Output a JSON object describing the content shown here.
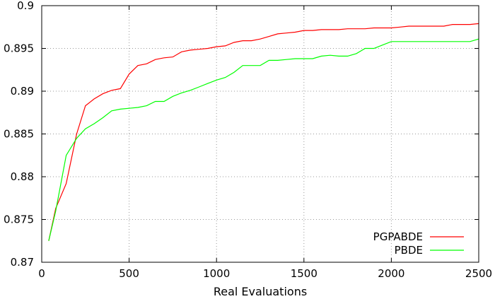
{
  "chart_data": {
    "type": "line",
    "title": "",
    "xlabel": "Real Evaluations",
    "ylabel": "",
    "xlim": [
      0,
      2500
    ],
    "ylim": [
      0.87,
      0.9
    ],
    "xticks": [
      0,
      500,
      1000,
      1500,
      2000,
      2500
    ],
    "yticks": [
      0.87,
      0.875,
      0.88,
      0.885,
      0.89,
      0.895,
      0.9
    ],
    "xtick_labels": [
      "0",
      "500",
      "1000",
      "1500",
      "2000",
      "2500"
    ],
    "ytick_labels": [
      "0.87",
      "0.875",
      "0.88",
      "0.885",
      "0.89",
      "0.895",
      "0.9"
    ],
    "grid": true,
    "legend_position": "bottom-right",
    "series": [
      {
        "name": "PGPABDE",
        "color": "#ff0000",
        "x": [
          40,
          80,
          140,
          200,
          250,
          300,
          350,
          400,
          450,
          500,
          550,
          600,
          650,
          700,
          750,
          800,
          850,
          900,
          950,
          1000,
          1050,
          1100,
          1150,
          1200,
          1250,
          1300,
          1350,
          1400,
          1450,
          1500,
          1550,
          1600,
          1650,
          1700,
          1750,
          1800,
          1850,
          1900,
          1950,
          2000,
          2050,
          2100,
          2150,
          2200,
          2250,
          2300,
          2350,
          2400,
          2450,
          2500
        ],
        "y": [
          0.8725,
          0.8763,
          0.8792,
          0.885,
          0.8883,
          0.8891,
          0.8897,
          0.8901,
          0.8903,
          0.892,
          0.893,
          0.8932,
          0.8937,
          0.8939,
          0.894,
          0.8946,
          0.8948,
          0.8949,
          0.895,
          0.8952,
          0.8953,
          0.8957,
          0.8959,
          0.8959,
          0.8961,
          0.8964,
          0.8967,
          0.8968,
          0.8969,
          0.8971,
          0.8971,
          0.8972,
          0.8972,
          0.8972,
          0.8973,
          0.8973,
          0.8973,
          0.8974,
          0.8974,
          0.8974,
          0.8975,
          0.8976,
          0.8976,
          0.8976,
          0.8976,
          0.8976,
          0.8978,
          0.8978,
          0.8978,
          0.8979
        ]
      },
      {
        "name": "PBDE",
        "color": "#00ff00",
        "x": [
          40,
          80,
          140,
          200,
          250,
          300,
          350,
          400,
          450,
          500,
          550,
          600,
          650,
          700,
          750,
          800,
          850,
          900,
          950,
          1000,
          1050,
          1100,
          1150,
          1200,
          1250,
          1300,
          1350,
          1400,
          1450,
          1500,
          1550,
          1600,
          1650,
          1700,
          1750,
          1800,
          1850,
          1900,
          1950,
          2000,
          2050,
          2100,
          2150,
          2200,
          2250,
          2300,
          2350,
          2400,
          2450,
          2500
        ],
        "y": [
          0.8725,
          0.876,
          0.8825,
          0.8845,
          0.8856,
          0.8862,
          0.8869,
          0.8877,
          0.8879,
          0.888,
          0.8881,
          0.8883,
          0.8888,
          0.8888,
          0.8894,
          0.8898,
          0.8901,
          0.8905,
          0.8909,
          0.8913,
          0.8916,
          0.8922,
          0.893,
          0.893,
          0.893,
          0.8936,
          0.8936,
          0.8937,
          0.8938,
          0.8938,
          0.8938,
          0.8941,
          0.8942,
          0.8941,
          0.8941,
          0.8944,
          0.895,
          0.895,
          0.8954,
          0.8958,
          0.8958,
          0.8958,
          0.8958,
          0.8958,
          0.8958,
          0.8958,
          0.8958,
          0.8958,
          0.8958,
          0.8961
        ]
      }
    ]
  }
}
